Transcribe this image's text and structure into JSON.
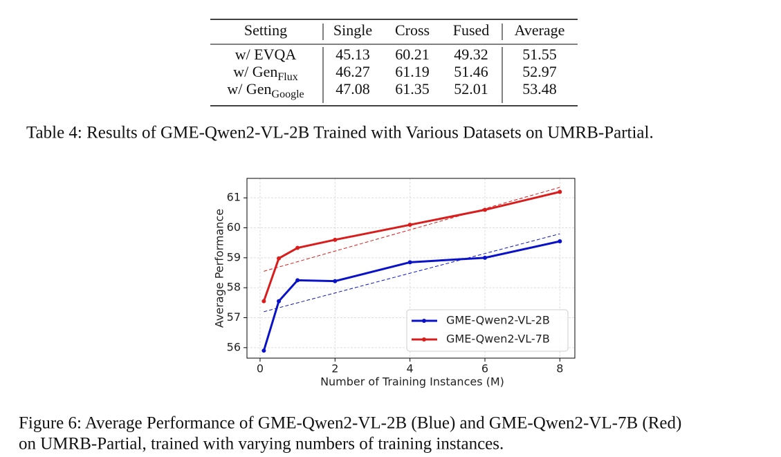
{
  "table": {
    "header": [
      "Setting",
      "Single",
      "Cross",
      "Fused",
      "Average"
    ],
    "rows": [
      [
        "w/ EVQA",
        45.13,
        60.21,
        49.32,
        51.55
      ],
      [
        {
          "text": "w/ Gen",
          "sub": "Flux"
        },
        46.27,
        61.19,
        51.46,
        52.97
      ],
      [
        {
          "text": "w/ Gen",
          "sub": "Google"
        },
        47.08,
        61.35,
        52.01,
        53.48
      ]
    ]
  },
  "table_caption": "Table 4: Results of GME-Qwen2-VL-2B Trained with Various Datasets on UMRB-Partial.",
  "chart_data": {
    "type": "line",
    "x_label": "Number of Training Instances (M)",
    "y_label": "Average Performance",
    "x": [
      0.1,
      0.5,
      1,
      2,
      4,
      6,
      8
    ],
    "series": [
      {
        "name": "GME-Qwen2-VL-2B",
        "color": "#0a12c8",
        "values": [
          55.9,
          57.55,
          58.25,
          58.22,
          58.85,
          59.0,
          59.55
        ],
        "trend": {
          "x": [
            0.1,
            8
          ],
          "values": [
            57.2,
            59.8
          ]
        }
      },
      {
        "name": "GME-Qwen2-VL-7B",
        "color": "#d91c1c",
        "values": [
          57.55,
          58.98,
          59.33,
          59.6,
          60.1,
          60.6,
          61.2
        ],
        "trend": {
          "x": [
            0.1,
            8
          ],
          "values": [
            58.55,
            61.35
          ]
        }
      }
    ],
    "xlim": [
      -0.35,
      8.4
    ],
    "ylim": [
      55.65,
      61.65
    ],
    "xticks": [
      0,
      2,
      4,
      6,
      8
    ],
    "yticks": [
      56,
      57,
      58,
      59,
      60,
      61
    ],
    "grid": true,
    "legend": "lower right"
  },
  "figure_caption": [
    "Figure 6: Average Performance of GME-Qwen2-VL-2B (Blue) and GME-Qwen2-VL-7B (Red)",
    "on UMRB-Partial, trained with varying numbers of training instances."
  ]
}
